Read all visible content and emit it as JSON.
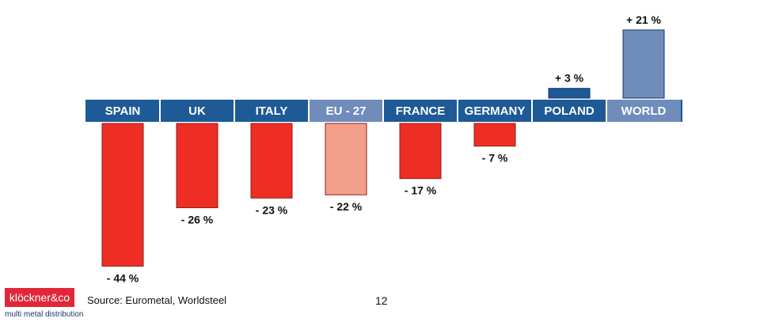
{
  "chart_data": {
    "type": "bar",
    "categories": [
      "SPAIN",
      "UK",
      "ITALY",
      "EU - 27",
      "FRANCE",
      "GERMANY",
      "POLAND",
      "WORLD"
    ],
    "values": [
      -44,
      -26,
      -23,
      -22,
      -17,
      -7,
      3,
      21
    ],
    "value_labels": [
      "- 44 %",
      "- 26 %",
      "- 23 %",
      "-  22 %",
      "- 17 %",
      "- 7 %",
      "+ 3 %",
      "+ 21 %"
    ],
    "ylim": [
      -44,
      21
    ],
    "band_colors": [
      "#1d5a96",
      "#1d5a96",
      "#1d5a96",
      "#6f8cbb",
      "#1d5a96",
      "#1d5a96",
      "#1d5a96",
      "#6f8cbb"
    ],
    "bar_colors": [
      "#ee2e24",
      "#ee2e24",
      "#ee2e24",
      "#f2a08a",
      "#ee2e24",
      "#ee2e24",
      "#1d5a96",
      "#6f8cbb"
    ],
    "grid": false,
    "legend": "none"
  },
  "footer": {
    "logo_text": "klöckner&co",
    "tagline": "multi metal distribution",
    "source": "Source: Eurometal, Worldsteel",
    "page_number": "12"
  },
  "colors": {
    "logo_bg": "#e2263a",
    "band_divider": "#ffffff",
    "band_label": "#ffffff"
  }
}
